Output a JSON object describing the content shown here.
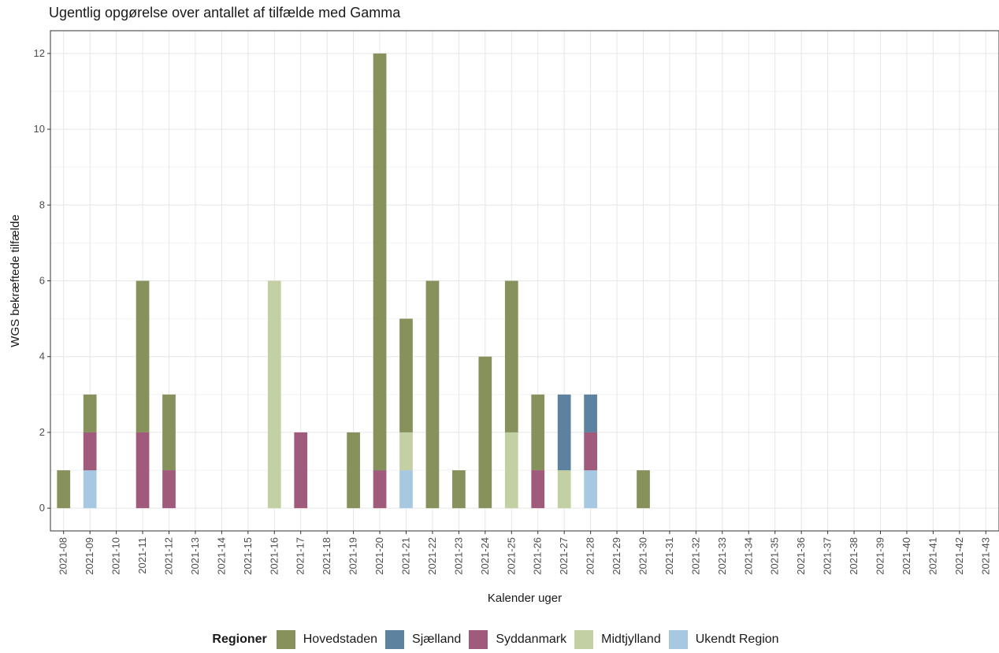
{
  "chart_data": {
    "type": "bar",
    "stacked": true,
    "title": "Ugentlig opgørelse over antallet af tilfælde med Gamma",
    "xlabel": "Kalender uger",
    "ylabel": "WGS bekræftede tilfælde",
    "ylim": [
      -0.6,
      12.6
    ],
    "yticks": [
      0,
      2,
      4,
      6,
      8,
      10,
      12
    ],
    "grid": true,
    "legend_position": "bottom",
    "legend_title": "Regioner",
    "categories": [
      "2021-08",
      "2021-09",
      "2021-10",
      "2021-11",
      "2021-12",
      "2021-13",
      "2021-14",
      "2021-15",
      "2021-16",
      "2021-17",
      "2021-18",
      "2021-19",
      "2021-20",
      "2021-21",
      "2021-22",
      "2021-23",
      "2021-24",
      "2021-25",
      "2021-26",
      "2021-27",
      "2021-28",
      "2021-29",
      "2021-30",
      "2021-31",
      "2021-32",
      "2021-33",
      "2021-34",
      "2021-35",
      "2021-36",
      "2021-37",
      "2021-38",
      "2021-39",
      "2021-40",
      "2021-41",
      "2021-42",
      "2021-43"
    ],
    "series": [
      {
        "name": "Ukendt Region",
        "color": "#a6c8e0",
        "values": [
          0,
          1,
          0,
          0,
          0,
          0,
          0,
          0,
          0,
          0,
          0,
          0,
          0,
          1,
          0,
          0,
          0,
          0,
          0,
          0,
          1,
          0,
          0,
          0,
          0,
          0,
          0,
          0,
          0,
          0,
          0,
          0,
          0,
          0,
          0,
          0
        ]
      },
      {
        "name": "Midtjylland",
        "color": "#c3d0a3",
        "values": [
          0,
          0,
          0,
          0,
          0,
          0,
          0,
          0,
          6,
          0,
          0,
          0,
          0,
          1,
          0,
          0,
          0,
          2,
          0,
          1,
          0,
          0,
          0,
          0,
          0,
          0,
          0,
          0,
          0,
          0,
          0,
          0,
          0,
          0,
          0,
          0
        ]
      },
      {
        "name": "Syddanmark",
        "color": "#a05a7c",
        "values": [
          0,
          1,
          0,
          2,
          1,
          0,
          0,
          0,
          0,
          2,
          0,
          0,
          1,
          0,
          0,
          0,
          0,
          0,
          1,
          0,
          1,
          0,
          0,
          0,
          0,
          0,
          0,
          0,
          0,
          0,
          0,
          0,
          0,
          0,
          0,
          0
        ]
      },
      {
        "name": "Sjælland",
        "color": "#5d82a0",
        "values": [
          0,
          0,
          0,
          0,
          0,
          0,
          0,
          0,
          0,
          0,
          0,
          0,
          0,
          0,
          0,
          0,
          0,
          0,
          0,
          2,
          1,
          0,
          0,
          0,
          0,
          0,
          0,
          0,
          0,
          0,
          0,
          0,
          0,
          0,
          0,
          0
        ]
      },
      {
        "name": "Hovedstaden",
        "color": "#86915c",
        "values": [
          1,
          1,
          0,
          4,
          2,
          0,
          0,
          0,
          0,
          0,
          0,
          2,
          11,
          3,
          6,
          1,
          4,
          4,
          2,
          0,
          0,
          0,
          1,
          0,
          0,
          0,
          0,
          0,
          0,
          0,
          0,
          0,
          0,
          0,
          0,
          0
        ]
      }
    ],
    "legend_order": [
      "Hovedstaden",
      "Sjælland",
      "Syddanmark",
      "Midtjylland",
      "Ukendt Region"
    ]
  }
}
